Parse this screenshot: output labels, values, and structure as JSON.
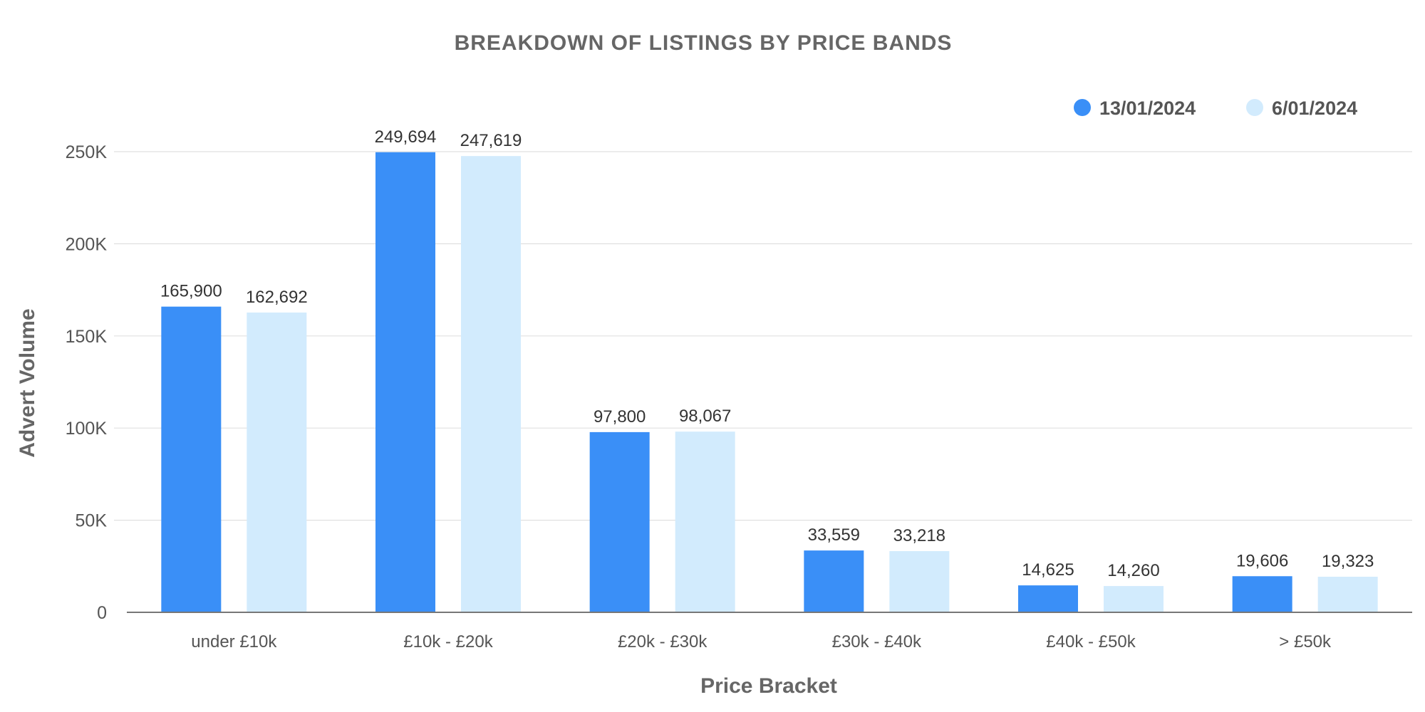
{
  "chart_data": {
    "type": "bar",
    "title": "BREAKDOWN  OF  LISTINGS  BY  PRICE BANDS",
    "xlabel": "Price Bracket",
    "ylabel": "Advert Volume",
    "categories": [
      "under £10k",
      "£10k - £20k",
      "£20k - £30k",
      "£30k - £40k",
      "£40k - £50k",
      "> £50k"
    ],
    "series": [
      {
        "name": "13/01/2024",
        "color": "#3a8ff7",
        "values": [
          165900,
          249694,
          97800,
          33559,
          14625,
          19606
        ],
        "labels": [
          "165,900",
          "249,694",
          "97,800",
          "33,559",
          "14,625",
          "19,606"
        ]
      },
      {
        "name": "6/01/2024",
        "color": "#d2ebfd",
        "values": [
          162692,
          247619,
          98067,
          33218,
          14260,
          19323
        ],
        "labels": [
          "162,692",
          "247,619",
          "98,067",
          "33,218",
          "14,260",
          "19,323"
        ]
      }
    ],
    "ylim": [
      0,
      250000
    ],
    "yticks": [
      0,
      50000,
      100000,
      150000,
      200000,
      250000
    ],
    "ytick_labels": [
      "0",
      "50K",
      "100K",
      "150K",
      "200K",
      "250K"
    ],
    "grid": true,
    "legend_position": "top-right"
  }
}
